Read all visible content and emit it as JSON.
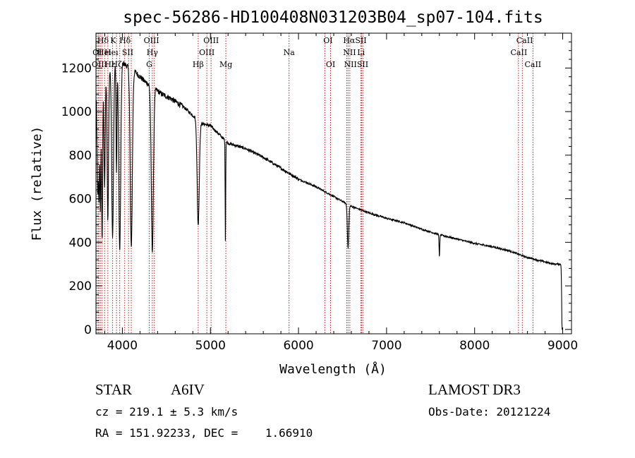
{
  "chart_data": {
    "type": "line",
    "title": "spec-56286-HD100408N031203B04_sp07-104.fits",
    "xlabel": "Wavelength (Å)",
    "ylabel": "Flux (relative)",
    "xlim": [
      3700,
      9100
    ],
    "ylim": [
      -20,
      1360
    ],
    "xticks": [
      4000,
      5000,
      6000,
      7000,
      8000,
      9000
    ],
    "xtick_labels": [
      "4000",
      "5000",
      "6000",
      "7000",
      "8000",
      "9000"
    ],
    "yticks": [
      0,
      200,
      400,
      600,
      800,
      1000,
      1200
    ],
    "ytick_labels": [
      "0",
      "200",
      "400",
      "600",
      "800",
      "1000",
      "1200"
    ],
    "line_color": "#000000",
    "marker_color": "#b22222",
    "continuum": [
      [
        3705,
        1200
      ],
      [
        3740,
        1150
      ],
      [
        3800,
        1160
      ],
      [
        3850,
        1190
      ],
      [
        3900,
        1210
      ],
      [
        3950,
        1230
      ],
      [
        4000,
        1225
      ],
      [
        4050,
        1210
      ],
      [
        4150,
        1180
      ],
      [
        4250,
        1140
      ],
      [
        4350,
        1110
      ],
      [
        4450,
        1080
      ],
      [
        4550,
        1060
      ],
      [
        4700,
        1020
      ],
      [
        4900,
        945
      ],
      [
        5000,
        935
      ],
      [
        5200,
        855
      ],
      [
        5400,
        830
      ],
      [
        5600,
        790
      ],
      [
        5800,
        740
      ],
      [
        6000,
        690
      ],
      [
        6200,
        655
      ],
      [
        6400,
        610
      ],
      [
        6600,
        565
      ],
      [
        6800,
        535
      ],
      [
        7000,
        510
      ],
      [
        7200,
        490
      ],
      [
        7400,
        460
      ],
      [
        7600,
        435
      ],
      [
        7800,
        415
      ],
      [
        8000,
        395
      ],
      [
        8200,
        380
      ],
      [
        8400,
        360
      ],
      [
        8600,
        330
      ],
      [
        8800,
        310
      ],
      [
        8900,
        300
      ],
      [
        8980,
        300
      ],
      [
        8995,
        230
      ]
    ],
    "absorption": [
      [
        3712,
        300,
        6
      ],
      [
        3722,
        450,
        5
      ],
      [
        3734,
        550,
        5
      ],
      [
        3750,
        600,
        6
      ],
      [
        3770,
        750,
        6
      ],
      [
        3798,
        500,
        7
      ],
      [
        3835,
        680,
        8
      ],
      [
        3889,
        780,
        10
      ],
      [
        3933,
        500,
        5
      ],
      [
        3970,
        870,
        11
      ],
      [
        4101,
        820,
        12
      ],
      [
        4340,
        750,
        12
      ],
      [
        4861,
        480,
        12
      ],
      [
        5170,
        480,
        3
      ],
      [
        6563,
        200,
        8
      ],
      [
        7600,
        100,
        4
      ],
      [
        8995,
        300,
        5
      ]
    ],
    "lines": [
      {
        "name": "Hδ",
        "x": 3780,
        "row": 0
      },
      {
        "name": "K",
        "x": 3895,
        "row": 0
      },
      {
        "name": "Hδ",
        "x": 4030,
        "row": 0
      },
      {
        "name": "OIII",
        "x": 4330,
        "row": 0
      },
      {
        "name": "OIII",
        "x": 5008,
        "row": 0
      },
      {
        "name": "OI",
        "x": 6335,
        "row": 0
      },
      {
        "name": "HαSII",
        "x": 6640,
        "row": 0
      },
      {
        "name": "CaII",
        "x": 8568,
        "row": 0
      },
      {
        "name": "OI",
        "x": 3715,
        "row": 1
      },
      {
        "name": "Heı",
        "x": 3795,
        "row": 1
      },
      {
        "name": "Heı",
        "x": 3875,
        "row": 1
      },
      {
        "name": "SII",
        "x": 4060,
        "row": 1
      },
      {
        "name": "Hγ",
        "x": 4340,
        "row": 1
      },
      {
        "name": "OIII",
        "x": 4959,
        "row": 1
      },
      {
        "name": "Na",
        "x": 5893,
        "row": 1
      },
      {
        "name": "NII",
        "x": 6580,
        "row": 1
      },
      {
        "name": "Li",
        "x": 6710,
        "row": 1
      },
      {
        "name": "CaII",
        "x": 8502,
        "row": 1
      },
      {
        "name": "OIII",
        "x": 3740,
        "row": 2
      },
      {
        "name": "Hε",
        "x": 3860,
        "row": 2
      },
      {
        "name": "Hζ",
        "x": 3935,
        "row": 2
      },
      {
        "name": "G",
        "x": 4305,
        "row": 2
      },
      {
        "name": "Hβ",
        "x": 4861,
        "row": 2
      },
      {
        "name": "Mg",
        "x": 5175,
        "row": 2
      },
      {
        "name": "OI",
        "x": 6364,
        "row": 2
      },
      {
        "name": "NIISII",
        "x": 6655,
        "row": 2
      },
      {
        "name": "CaII",
        "x": 8662,
        "row": 2
      }
    ],
    "line_markers_x": [
      3712,
      3727,
      3734,
      3750,
      3770,
      3798,
      3835,
      3889,
      3933,
      3970,
      4026,
      4070,
      4101,
      4305,
      4340,
      4363,
      4861,
      4959,
      5007,
      5175,
      5893,
      6300,
      6364,
      6548,
      6563,
      6583,
      6707,
      6716,
      6731,
      8498,
      8542,
      8662
    ]
  },
  "info": {
    "object_class": "STAR",
    "spectral_type": "A6IV",
    "survey": "LAMOST DR3",
    "cz": "cz = 219.1 ± 5.3 km/s",
    "obs_date": "Obs-Date: 20121224",
    "coords": "RA = 151.92233, DEC =    1.66910"
  }
}
